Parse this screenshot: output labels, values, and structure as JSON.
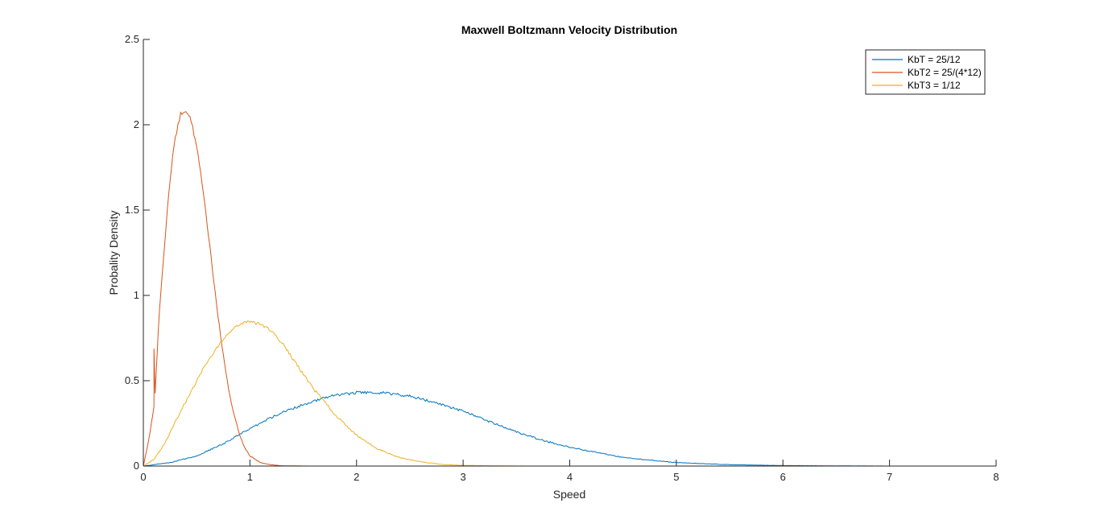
{
  "chart_data": {
    "type": "line",
    "title": "Maxwell Boltzmann Velocity Distribution",
    "xlabel": "Speed",
    "ylabel": "Probality Density",
    "xlim": [
      0,
      8
    ],
    "ylim": [
      0,
      2.5
    ],
    "xticks": [
      "0",
      "1",
      "2",
      "3",
      "4",
      "5",
      "6",
      "7",
      "8"
    ],
    "yticks": [
      "0",
      "0.5",
      "1",
      "1.5",
      "2",
      "2.5"
    ],
    "grid": false,
    "legend_position": "top-right",
    "series": [
      {
        "name": "KbT = 25/12",
        "color": "#0072BD",
        "x": [
          0,
          0.25,
          0.5,
          0.75,
          1,
          1.25,
          1.5,
          1.75,
          2,
          2.25,
          2.5,
          2.75,
          3,
          3.25,
          3.5,
          3.75,
          4,
          4.5,
          5,
          5.5,
          6,
          6.5,
          7
        ],
        "y": [
          0,
          0.02,
          0.06,
          0.13,
          0.22,
          0.3,
          0.36,
          0.41,
          0.43,
          0.43,
          0.41,
          0.37,
          0.32,
          0.26,
          0.2,
          0.15,
          0.11,
          0.05,
          0.02,
          0.008,
          0.003,
          0.001,
          0
        ]
      },
      {
        "name": "KbT2 = 25/(4*12)",
        "color": "#D95319",
        "x": [
          0,
          0.05,
          0.1,
          0.1,
          0.11,
          0.15,
          0.2,
          0.25,
          0.3,
          0.35,
          0.4,
          0.45,
          0.5,
          0.55,
          0.6,
          0.65,
          0.7,
          0.75,
          0.8,
          0.85,
          0.9,
          0.95,
          1.0,
          1.1,
          1.2,
          1.3,
          1.4,
          1.55
        ],
        "y": [
          0,
          0.15,
          0.35,
          0.69,
          0.42,
          0.9,
          1.3,
          1.68,
          1.93,
          2.06,
          2.08,
          2.02,
          1.87,
          1.66,
          1.41,
          1.14,
          0.88,
          0.65,
          0.45,
          0.3,
          0.19,
          0.11,
          0.06,
          0.02,
          0.007,
          0.002,
          0.001,
          0
        ]
      },
      {
        "name": "KbT3 = 1/12",
        "color": "#EDB120",
        "x": [
          0,
          0.1,
          0.2,
          0.3,
          0.4,
          0.5,
          0.6,
          0.7,
          0.8,
          0.9,
          1.0,
          1.1,
          1.2,
          1.3,
          1.4,
          1.5,
          1.6,
          1.8,
          2.0,
          2.2,
          2.4,
          2.6,
          2.8,
          3.0,
          3.3,
          3.6
        ],
        "y": [
          0,
          0.04,
          0.13,
          0.26,
          0.38,
          0.5,
          0.61,
          0.7,
          0.78,
          0.83,
          0.85,
          0.83,
          0.79,
          0.72,
          0.63,
          0.54,
          0.45,
          0.3,
          0.18,
          0.1,
          0.05,
          0.025,
          0.01,
          0.004,
          0.001,
          0
        ]
      }
    ]
  }
}
